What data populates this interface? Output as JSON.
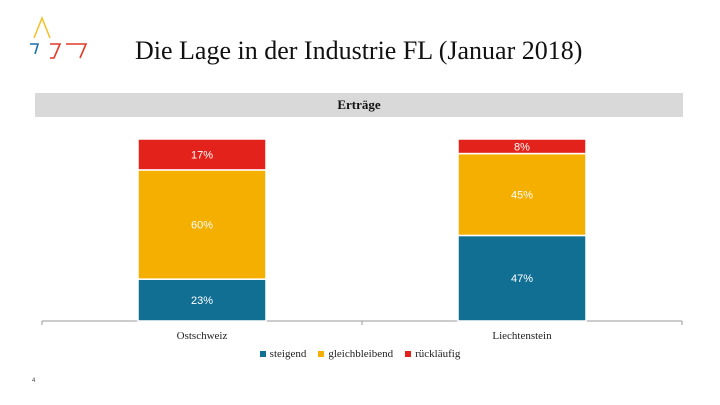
{
  "slide": {
    "title": "Die Lage in der Industrie FL (Januar 2018)",
    "page_number": "4"
  },
  "logo": {
    "colors": [
      "#f2c230",
      "#1f6fa8",
      "#e03a2a"
    ]
  },
  "chart_data": {
    "type": "bar",
    "stacked": true,
    "title": "Erträge",
    "categories": [
      "Ostschweiz",
      "Liechtenstein"
    ],
    "series": [
      {
        "name": "steigend",
        "color": "#126f94",
        "values": [
          23,
          47
        ],
        "labels": [
          "23%",
          "47%"
        ]
      },
      {
        "name": "gleichbleibend",
        "color": "#f5af00",
        "values": [
          60,
          45
        ],
        "labels": [
          "60%",
          "45%"
        ]
      },
      {
        "name": "rückläufig",
        "color": "#e3231b",
        "values": [
          17,
          8
        ],
        "labels": [
          "17%",
          "8%"
        ]
      }
    ],
    "ylim": [
      0,
      100
    ],
    "legend_position": "bottom",
    "grid": false
  }
}
